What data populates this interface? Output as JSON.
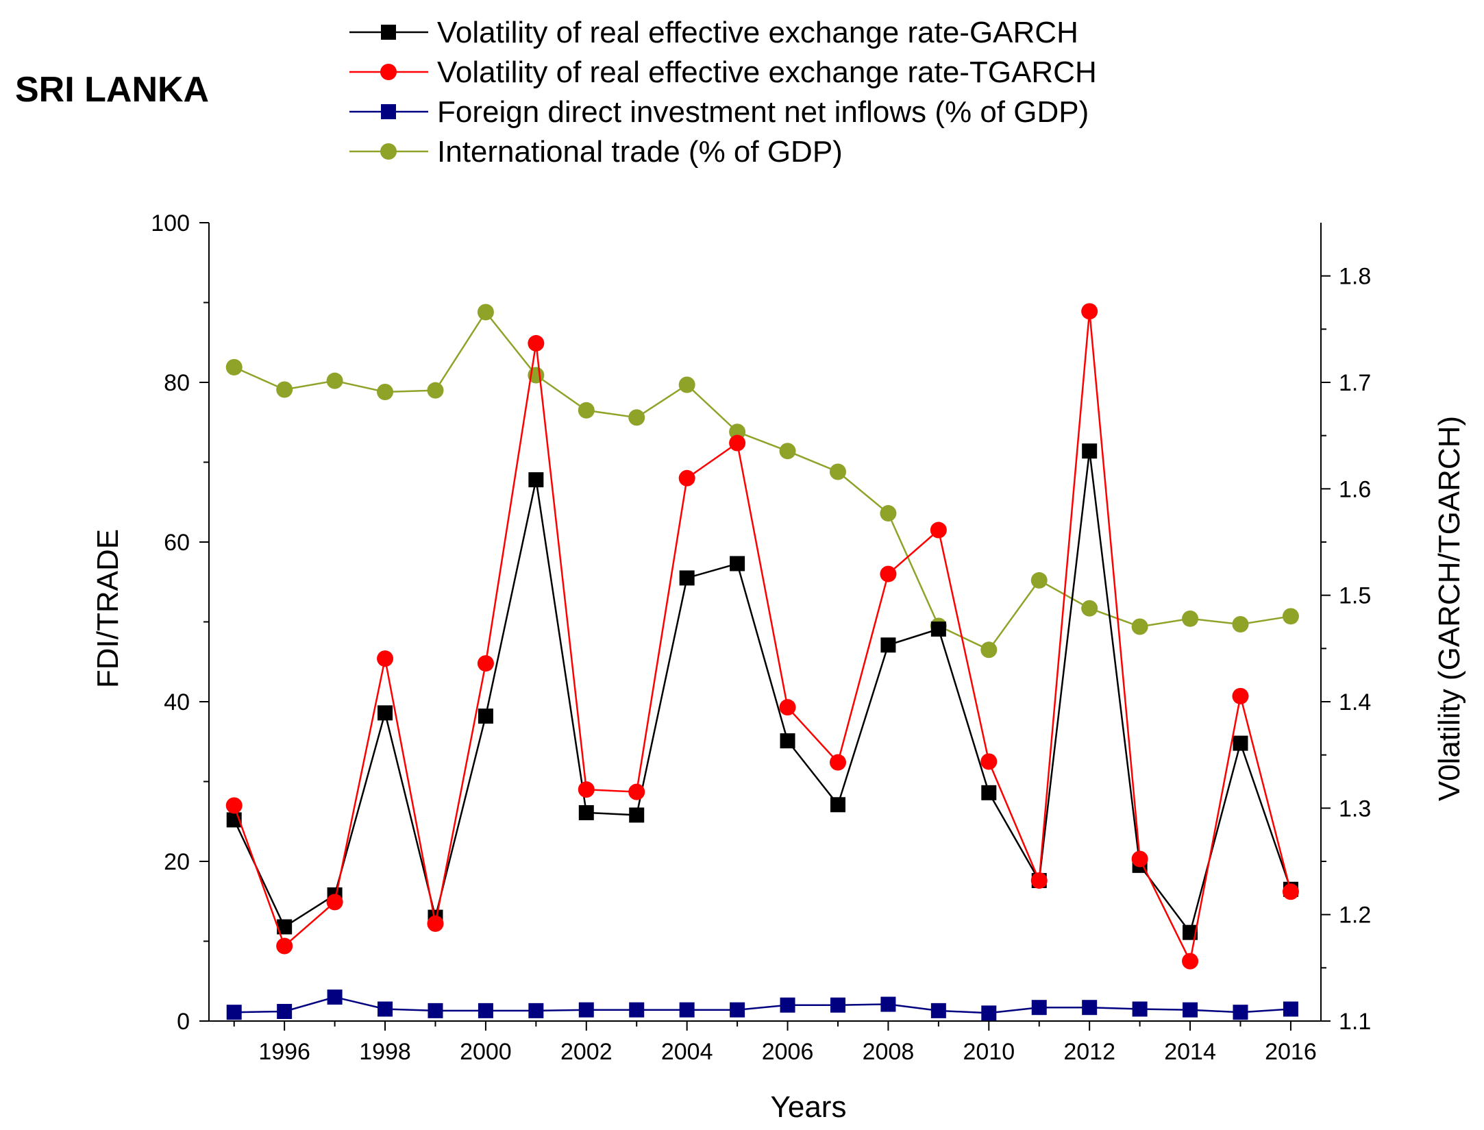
{
  "chart_data": {
    "type": "line",
    "title": "SRI LANKA",
    "xlabel": "Years",
    "ylabel_left": "FDI/TRADE",
    "ylabel_right": "V0latility (GARCH/TGARCH)",
    "x": [
      1995,
      1996,
      1997,
      1998,
      1999,
      2000,
      2001,
      2002,
      2003,
      2004,
      2005,
      2006,
      2007,
      2008,
      2009,
      2010,
      2011,
      2012,
      2013,
      2014,
      2015,
      2016
    ],
    "xlim": [
      1994.5,
      2016.6
    ],
    "x_ticks": [
      "1996",
      "1998",
      "2000",
      "2002",
      "2004",
      "2006",
      "2008",
      "2010",
      "2012",
      "2014",
      "2016"
    ],
    "ylim_left": [
      0,
      100
    ],
    "y_ticks_left": [
      "0",
      "20",
      "40",
      "60",
      "80",
      "100"
    ],
    "ylim_right": [
      1.1,
      1.85
    ],
    "y_ticks_right": [
      "1.1",
      "1.2",
      "1.3",
      "1.4",
      "1.5",
      "1.6",
      "1.7",
      "1.8"
    ],
    "grid": false,
    "legend_position": "top",
    "series": [
      {
        "name": "Volatility of real effective exchange rate-GARCH",
        "axis": "left",
        "color": "#000000",
        "marker": "square",
        "values": [
          25.2,
          11.8,
          15.8,
          38.6,
          13.0,
          38.2,
          67.8,
          26.1,
          25.8,
          55.5,
          57.3,
          35.1,
          27.1,
          47.1,
          49.1,
          28.6,
          17.6,
          71.4,
          19.5,
          11.1,
          34.8,
          16.5
        ]
      },
      {
        "name": "Volatility of real effective exchange rate-TGARCH",
        "axis": "left",
        "color": "#ff0000",
        "marker": "circle",
        "values": [
          27.0,
          9.4,
          14.9,
          45.4,
          12.2,
          44.8,
          84.9,
          29.0,
          28.7,
          68.0,
          72.4,
          39.3,
          32.4,
          56.0,
          61.5,
          32.5,
          17.6,
          88.9,
          20.3,
          7.5,
          40.7,
          16.2
        ]
      },
      {
        "name": "Foreign direct investment net inflows (% of GDP)",
        "axis": "left",
        "color": "#000080",
        "marker": "square",
        "values": [
          1.1,
          1.2,
          3.0,
          1.5,
          1.3,
          1.3,
          1.3,
          1.4,
          1.4,
          1.4,
          1.4,
          2.0,
          2.0,
          2.1,
          1.3,
          1.0,
          1.7,
          1.7,
          1.5,
          1.4,
          1.1,
          1.5
        ]
      },
      {
        "name": "International trade (% of GDP)",
        "axis": "left",
        "color": "#8fa329",
        "marker": "circle",
        "values": [
          81.9,
          79.1,
          80.2,
          78.8,
          79.0,
          88.8,
          80.9,
          76.5,
          75.6,
          79.7,
          73.8,
          71.4,
          68.8,
          63.6,
          49.5,
          46.5,
          55.2,
          51.7,
          49.4,
          50.4,
          49.7,
          50.7
        ]
      }
    ]
  }
}
